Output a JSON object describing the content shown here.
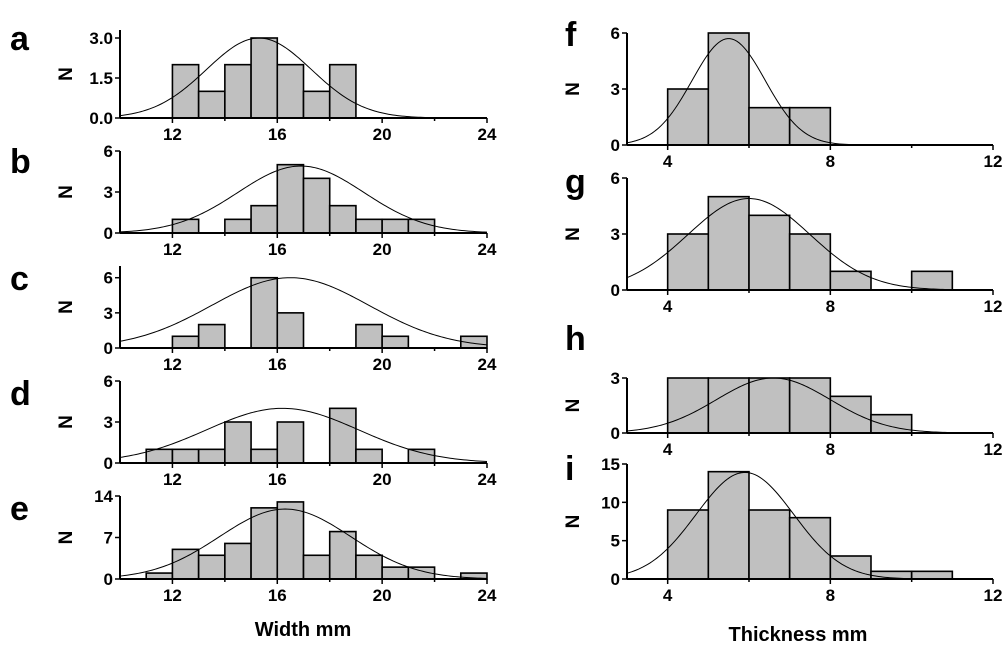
{
  "chart_data": [
    {
      "type": "bar",
      "panel": "a",
      "ylabel": "N",
      "bin_edges": [
        12,
        13,
        14,
        15,
        16,
        17,
        18,
        19,
        20
      ],
      "values": [
        2,
        1,
        2,
        3,
        2,
        1,
        2,
        0
      ],
      "xlim": [
        10,
        24
      ],
      "ylim": [
        0,
        3.3
      ],
      "xticks": [
        "12",
        "16",
        "20",
        "24"
      ],
      "xtick_values": [
        12,
        16,
        20,
        24
      ],
      "yticks": [
        "0.0",
        "1.5",
        "3.0"
      ],
      "ytick_values": [
        0,
        1.5,
        3.0
      ],
      "fit": {
        "mean": 15.3,
        "sd": 2.0,
        "peak": 3.0
      },
      "show_xticklabels": true
    },
    {
      "type": "bar",
      "panel": "b",
      "ylabel": "N",
      "bin_edges": [
        12,
        13,
        14,
        15,
        16,
        17,
        18,
        19,
        20,
        21,
        22
      ],
      "values": [
        1,
        0,
        1,
        2,
        5,
        4,
        2,
        1,
        1,
        1
      ],
      "xlim": [
        10,
        24
      ],
      "ylim": [
        0,
        6
      ],
      "xticks": [
        "12",
        "16",
        "20",
        "24"
      ],
      "xtick_values": [
        12,
        16,
        20,
        24
      ],
      "yticks": [
        "0",
        "3",
        "6"
      ],
      "ytick_values": [
        0,
        3,
        6
      ],
      "fit": {
        "mean": 16.9,
        "sd": 2.4,
        "peak": 4.9
      },
      "show_xticklabels": true
    },
    {
      "type": "bar",
      "panel": "c",
      "ylabel": "N",
      "bin_edges": [
        12,
        13,
        14,
        15,
        16,
        17,
        18,
        19,
        20,
        21,
        22,
        23,
        24
      ],
      "values": [
        1,
        2,
        0,
        6,
        3,
        0,
        0,
        2,
        1,
        0,
        0,
        1
      ],
      "xlim": [
        10,
        24
      ],
      "ylim": [
        0,
        7
      ],
      "xticks": [
        "12",
        "16",
        "20",
        "24"
      ],
      "xtick_values": [
        12,
        16,
        20,
        24
      ],
      "yticks": [
        "0",
        "3",
        "6"
      ],
      "ytick_values": [
        0,
        3,
        6
      ],
      "fit": {
        "mean": 16.5,
        "sd": 3.0,
        "peak": 6.0
      },
      "show_xticklabels": true
    },
    {
      "type": "bar",
      "panel": "d",
      "ylabel": "N",
      "bin_edges": [
        11,
        12,
        13,
        14,
        15,
        16,
        17,
        18,
        19,
        20,
        21,
        22
      ],
      "values": [
        1,
        1,
        1,
        3,
        1,
        3,
        0,
        4,
        1,
        0,
        1
      ],
      "xlim": [
        10,
        24
      ],
      "ylim": [
        0,
        6
      ],
      "xticks": [
        "12",
        "16",
        "20",
        "24"
      ],
      "xtick_values": [
        12,
        16,
        20,
        24
      ],
      "yticks": [
        "0",
        "3",
        "6"
      ],
      "ytick_values": [
        0,
        3,
        6
      ],
      "fit": {
        "mean": 16.2,
        "sd": 2.9,
        "peak": 4.0
      },
      "show_xticklabels": true
    },
    {
      "type": "bar",
      "panel": "e",
      "ylabel": "N",
      "bin_edges": [
        11,
        12,
        13,
        14,
        15,
        16,
        17,
        18,
        19,
        20,
        21,
        22,
        23,
        24
      ],
      "values": [
        1,
        5,
        4,
        6,
        12,
        13,
        4,
        8,
        4,
        2,
        2,
        0,
        1
      ],
      "xlim": [
        10,
        24
      ],
      "ylim": [
        0,
        14
      ],
      "xticks": [
        "12",
        "16",
        "20",
        "24"
      ],
      "xtick_values": [
        12,
        16,
        20,
        24
      ],
      "yticks": [
        "0",
        "7",
        "14"
      ],
      "ytick_values": [
        0,
        7,
        14
      ],
      "fit": {
        "mean": 16.3,
        "sd": 2.5,
        "peak": 11.8
      },
      "show_xticklabels": true
    },
    {
      "type": "bar",
      "panel": "f",
      "ylabel": "N",
      "bin_edges": [
        4,
        5,
        6,
        7,
        8
      ],
      "values": [
        3,
        6,
        2,
        2
      ],
      "xlim": [
        3,
        12
      ],
      "ylim": [
        0,
        6
      ],
      "xticks": [
        "4",
        "8",
        "12"
      ],
      "xtick_values": [
        4,
        8,
        12
      ],
      "yticks": [
        "0",
        "3",
        "6"
      ],
      "ytick_values": [
        0,
        3,
        6
      ],
      "fit": {
        "mean": 5.5,
        "sd": 0.9,
        "peak": 5.7
      },
      "show_xticklabels": true
    },
    {
      "type": "bar",
      "panel": "g",
      "ylabel": "N",
      "bin_edges": [
        4,
        5,
        6,
        7,
        8,
        9,
        10,
        11
      ],
      "values": [
        3,
        5,
        4,
        3,
        1,
        0,
        1
      ],
      "xlim": [
        3,
        12
      ],
      "ylim": [
        0,
        6
      ],
      "xticks": [
        "4",
        "8",
        "12"
      ],
      "xtick_values": [
        4,
        8,
        12
      ],
      "yticks": [
        "0",
        "3",
        "6"
      ],
      "ytick_values": [
        0,
        3,
        6
      ],
      "fit": {
        "mean": 6.0,
        "sd": 1.5,
        "peak": 4.9
      },
      "show_xticklabels": true
    },
    {
      "type": "bar",
      "panel": "h",
      "ylabel": "N",
      "bin_edges": [
        4,
        5,
        6,
        7,
        8,
        9,
        10
      ],
      "values": [
        3,
        3,
        3,
        3,
        2,
        1
      ],
      "xlim": [
        3,
        12
      ],
      "ylim": [
        0,
        3
      ],
      "xticks": [
        "4",
        "8",
        "12"
      ],
      "xtick_values": [
        4,
        8,
        12
      ],
      "yticks": [
        "0",
        "3"
      ],
      "ytick_values": [
        0,
        3
      ],
      "fit": {
        "mean": 6.6,
        "sd": 1.4,
        "peak": 3.0
      },
      "show_xticklabels": true
    },
    {
      "type": "bar",
      "panel": "i",
      "ylabel": "N",
      "bin_edges": [
        4,
        5,
        6,
        7,
        8,
        9,
        10,
        11
      ],
      "values": [
        9,
        14,
        9,
        8,
        3,
        1,
        1
      ],
      "xlim": [
        3,
        12
      ],
      "ylim": [
        0,
        15
      ],
      "xticks": [
        "4",
        "8",
        "12"
      ],
      "xtick_values": [
        4,
        8,
        12
      ],
      "yticks": [
        "0",
        "5",
        "10",
        "15"
      ],
      "ytick_values": [
        0,
        5,
        10,
        15
      ],
      "fit": {
        "mean": 5.9,
        "sd": 1.2,
        "peak": 13.9
      },
      "show_xticklabels": true
    }
  ],
  "xlabels": {
    "left": "Width mm",
    "right": "Thickness mm"
  }
}
